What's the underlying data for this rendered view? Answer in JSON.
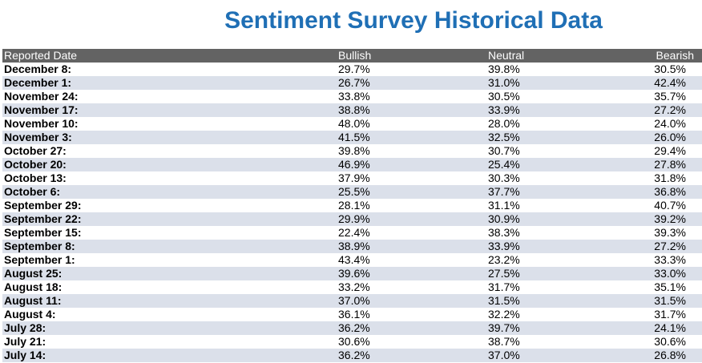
{
  "title": "Sentiment Survey Historical Data",
  "table": {
    "headers": {
      "date": "Reported Date",
      "bullish": "Bullish",
      "neutral": "Neutral",
      "bearish": "Bearish"
    },
    "rows": [
      {
        "date": "December 8:",
        "bullish": "29.7%",
        "neutral": "39.8%",
        "bearish": "30.5%"
      },
      {
        "date": "December 1:",
        "bullish": "26.7%",
        "neutral": "31.0%",
        "bearish": "42.4%"
      },
      {
        "date": "November 24:",
        "bullish": "33.8%",
        "neutral": "30.5%",
        "bearish": "35.7%"
      },
      {
        "date": "November 17:",
        "bullish": "38.8%",
        "neutral": "33.9%",
        "bearish": "27.2%"
      },
      {
        "date": "November 10:",
        "bullish": "48.0%",
        "neutral": "28.0%",
        "bearish": "24.0%"
      },
      {
        "date": "November 3:",
        "bullish": "41.5%",
        "neutral": "32.5%",
        "bearish": "26.0%"
      },
      {
        "date": "October 27:",
        "bullish": "39.8%",
        "neutral": "30.7%",
        "bearish": "29.4%"
      },
      {
        "date": "October 20:",
        "bullish": "46.9%",
        "neutral": "25.4%",
        "bearish": "27.8%"
      },
      {
        "date": "October 13:",
        "bullish": "37.9%",
        "neutral": "30.3%",
        "bearish": "31.8%"
      },
      {
        "date": "October 6:",
        "bullish": "25.5%",
        "neutral": "37.7%",
        "bearish": "36.8%"
      },
      {
        "date": "September 29:",
        "bullish": "28.1%",
        "neutral": "31.1%",
        "bearish": "40.7%"
      },
      {
        "date": "September 22:",
        "bullish": "29.9%",
        "neutral": "30.9%",
        "bearish": "39.2%"
      },
      {
        "date": "September 15:",
        "bullish": "22.4%",
        "neutral": "38.3%",
        "bearish": "39.3%"
      },
      {
        "date": "September 8:",
        "bullish": "38.9%",
        "neutral": "33.9%",
        "bearish": "27.2%"
      },
      {
        "date": "September 1:",
        "bullish": "43.4%",
        "neutral": "23.2%",
        "bearish": "33.3%"
      },
      {
        "date": "August 25:",
        "bullish": "39.6%",
        "neutral": "27.5%",
        "bearish": "33.0%"
      },
      {
        "date": "August 18:",
        "bullish": "33.2%",
        "neutral": "31.7%",
        "bearish": "35.1%"
      },
      {
        "date": "August 11:",
        "bullish": "37.0%",
        "neutral": "31.5%",
        "bearish": "31.5%"
      },
      {
        "date": "August 4:",
        "bullish": "36.1%",
        "neutral": "32.2%",
        "bearish": "31.7%"
      },
      {
        "date": "July 28:",
        "bullish": "36.2%",
        "neutral": "39.7%",
        "bearish": "24.1%"
      },
      {
        "date": "July 21:",
        "bullish": "30.6%",
        "neutral": "38.7%",
        "bearish": "30.6%"
      },
      {
        "date": "July 14:",
        "bullish": "36.2%",
        "neutral": "37.0%",
        "bearish": "26.8%"
      }
    ]
  }
}
